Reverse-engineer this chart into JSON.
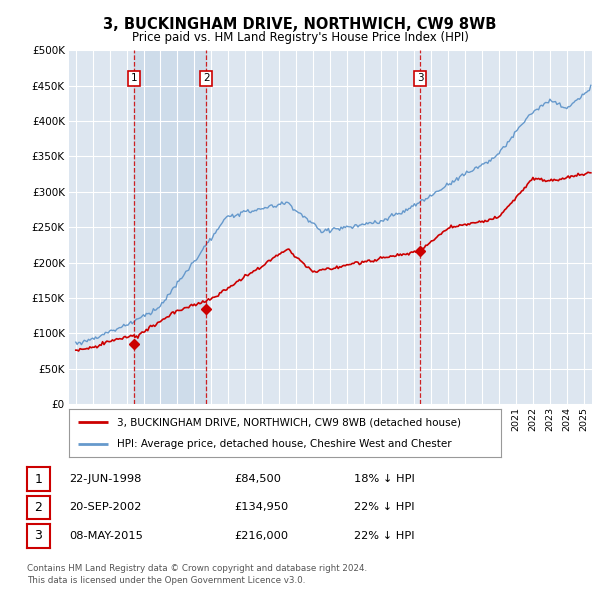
{
  "title": "3, BUCKINGHAM DRIVE, NORTHWICH, CW9 8WB",
  "subtitle": "Price paid vs. HM Land Registry's House Price Index (HPI)",
  "sale_dates_decimal": [
    1998.458,
    2002.708,
    2015.333
  ],
  "sale_prices": [
    84500,
    134950,
    216000
  ],
  "sale_labels": [
    "1",
    "2",
    "3"
  ],
  "sale_info": [
    [
      "1",
      "22-JUN-1998",
      "£84,500",
      "18% ↓ HPI"
    ],
    [
      "2",
      "20-SEP-2002",
      "£134,950",
      "22% ↓ HPI"
    ],
    [
      "3",
      "08-MAY-2015",
      "£216,000",
      "22% ↓ HPI"
    ]
  ],
  "legend_property": "3, BUCKINGHAM DRIVE, NORTHWICH, CW9 8WB (detached house)",
  "legend_hpi": "HPI: Average price, detached house, Cheshire West and Chester",
  "footer": "Contains HM Land Registry data © Crown copyright and database right 2024.\nThis data is licensed under the Open Government Licence v3.0.",
  "property_color": "#cc0000",
  "hpi_color": "#6699cc",
  "background_color": "#ffffff",
  "plot_bg_color": "#dde6f0",
  "grid_color": "#ffffff",
  "vline_color": "#cc0000",
  "shade_color": "#c8d8e8",
  "ylim": [
    0,
    500000
  ],
  "yticks": [
    0,
    50000,
    100000,
    150000,
    200000,
    250000,
    300000,
    350000,
    400000,
    450000,
    500000
  ],
  "xlim_start": 1994.6,
  "xlim_end": 2025.5
}
